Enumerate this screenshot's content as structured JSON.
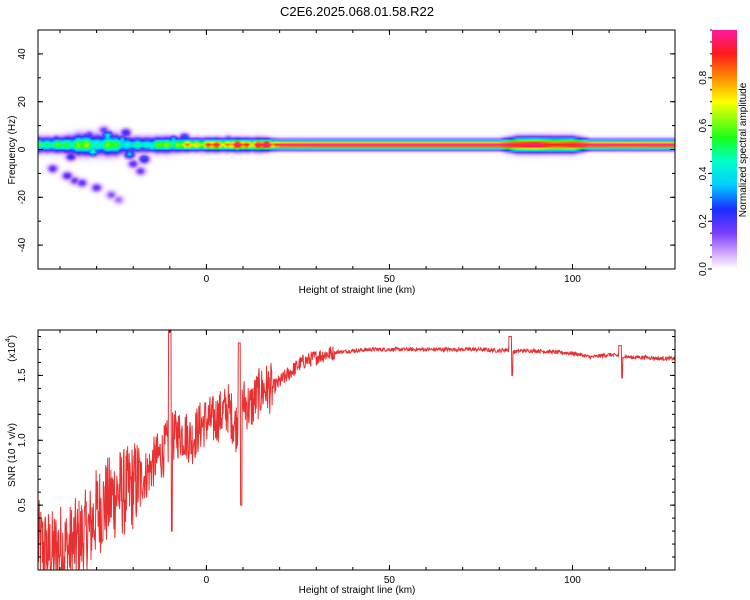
{
  "figure_title": "C2E6.2025.068.01.58.R22",
  "chart_data": [
    {
      "type": "heatmap",
      "title": "C2E6.2025.068.01.58.R22",
      "xlabel": "Height of straight line (km)",
      "ylabel": "Frequency (Hz)",
      "xlim": [
        -46,
        128
      ],
      "ylim": [
        -50,
        50
      ],
      "xticks": [
        0,
        50,
        100
      ],
      "yticks": [
        -40,
        -20,
        0,
        20,
        40
      ],
      "xtick_labels": [
        "0",
        "50",
        "100"
      ],
      "ytick_labels": [
        "-40",
        "-20",
        "0",
        "20",
        "40"
      ],
      "colorbar": {
        "label": "Normalized spectral amplitude",
        "range": [
          0,
          1
        ],
        "ticks": [
          0.0,
          0.2,
          0.4,
          0.6,
          0.8
        ],
        "tick_labels": [
          "0.0",
          "0.2",
          "0.4",
          "0.6",
          "0.8"
        ]
      },
      "band_center_hz": 2,
      "band": {
        "x": [
          -45,
          -40,
          -35,
          -30,
          -25,
          -20,
          -15,
          -10,
          -5,
          0,
          5,
          10,
          15,
          20,
          30,
          40,
          50,
          60,
          70,
          80,
          85,
          90,
          95,
          100,
          105,
          110,
          115,
          120,
          128
        ],
        "amplitude": [
          0.55,
          0.5,
          0.6,
          0.5,
          0.55,
          0.4,
          0.5,
          0.6,
          0.7,
          0.8,
          0.85,
          0.88,
          0.92,
          0.98,
          1.0,
          1.0,
          1.0,
          1.0,
          1.0,
          1.0,
          0.95,
          1.0,
          0.9,
          0.95,
          1.0,
          1.0,
          0.98,
          1.0,
          1.0
        ],
        "halfwidth_hz": [
          3,
          3,
          4,
          4,
          4,
          3,
          3,
          3,
          2.5,
          2.5,
          2.5,
          2.5,
          2.5,
          2,
          2,
          2,
          2,
          2,
          2,
          2,
          3,
          3,
          3,
          3,
          2,
          2,
          2,
          2,
          2
        ]
      },
      "blobs": [
        {
          "x": -44,
          "y": 2,
          "a": 0.55
        },
        {
          "x": -41,
          "y": 4,
          "a": 0.3
        },
        {
          "x": -39,
          "y": 1,
          "a": 0.45
        },
        {
          "x": -37,
          "y": -3,
          "a": 0.25
        },
        {
          "x": -35,
          "y": 2,
          "a": 0.6
        },
        {
          "x": -33,
          "y": 5,
          "a": 0.3
        },
        {
          "x": -31,
          "y": -1,
          "a": 0.5
        },
        {
          "x": -29,
          "y": 3,
          "a": 0.35
        },
        {
          "x": -27,
          "y": 6,
          "a": 0.45
        },
        {
          "x": -25,
          "y": 1,
          "a": 0.55
        },
        {
          "x": -23,
          "y": 4,
          "a": 0.4
        },
        {
          "x": -21,
          "y": -2,
          "a": 0.4
        },
        {
          "x": -19,
          "y": 2,
          "a": 0.35
        },
        {
          "x": -17,
          "y": -4,
          "a": 0.3
        },
        {
          "x": -15,
          "y": 1,
          "a": 0.45
        },
        {
          "x": -13,
          "y": 3,
          "a": 0.35
        },
        {
          "x": -11,
          "y": 2,
          "a": 0.5
        },
        {
          "x": -9,
          "y": 4,
          "a": 0.4
        },
        {
          "x": -42,
          "y": -8,
          "a": 0.2
        },
        {
          "x": -38,
          "y": -11,
          "a": 0.22
        },
        {
          "x": -34,
          "y": -14,
          "a": 0.2
        },
        {
          "x": -30,
          "y": -16,
          "a": 0.2
        },
        {
          "x": -26,
          "y": -19,
          "a": 0.15
        },
        {
          "x": -24,
          "y": -21,
          "a": 0.12
        },
        {
          "x": -36,
          "y": -13,
          "a": 0.18
        },
        {
          "x": -20,
          "y": -6,
          "a": 0.2
        },
        {
          "x": -18,
          "y": -9,
          "a": 0.18
        },
        {
          "x": -22,
          "y": 7,
          "a": 0.25
        },
        {
          "x": -28,
          "y": 8,
          "a": 0.18
        },
        {
          "x": -32,
          "y": 6,
          "a": 0.2
        },
        {
          "x": -6,
          "y": 5,
          "a": 0.3
        },
        {
          "x": -3,
          "y": 3,
          "a": 0.25
        },
        {
          "x": 6,
          "y": 4,
          "a": 0.25
        },
        {
          "x": 12,
          "y": 3,
          "a": 0.2
        }
      ],
      "pixel_grid": {
        "nx": 348,
        "ny": 120
      }
    },
    {
      "type": "line",
      "xlabel": "Height of straight line (km)",
      "ylabel": "SNR (10 * v/v)",
      "y_multiplier_label": "(x10",
      "y_multiplier_exponent": "4",
      "y_multiplier_close": ")",
      "xlim": [
        -46,
        128
      ],
      "ylim": [
        0,
        1.85
      ],
      "xticks": [
        0,
        50,
        100
      ],
      "yticks": [
        0.5,
        1.0,
        1.5
      ],
      "xtick_labels": [
        "0",
        "50",
        "100"
      ],
      "ytick_labels": [
        "0.5",
        "1.0",
        "1.5"
      ],
      "color": "#e83030",
      "series": [
        {
          "name": "SNR",
          "x": [
            -46,
            -44,
            -42,
            -40,
            -38,
            -36,
            -34,
            -32,
            -30,
            -28,
            -26,
            -24,
            -22,
            -20,
            -18,
            -16,
            -14,
            -12,
            -10,
            -8,
            -6,
            -4,
            -2,
            0,
            2,
            4,
            6,
            8,
            10,
            12,
            14,
            16,
            18,
            20,
            22,
            24,
            26,
            28,
            30,
            32,
            34,
            36,
            40,
            45,
            50,
            55,
            60,
            65,
            70,
            75,
            80,
            82,
            84,
            86,
            90,
            95,
            100,
            102,
            105,
            110,
            113,
            116,
            120,
            124,
            128
          ],
          "y": [
            0.2,
            0.15,
            0.12,
            0.18,
            0.15,
            0.2,
            0.25,
            0.3,
            0.45,
            0.5,
            0.55,
            0.6,
            0.6,
            0.65,
            0.7,
            0.75,
            0.85,
            0.9,
            1.0,
            1.05,
            1.05,
            1.0,
            1.1,
            1.15,
            1.15,
            1.2,
            1.25,
            1.1,
            1.3,
            1.25,
            1.35,
            1.4,
            1.4,
            1.45,
            1.5,
            1.55,
            1.6,
            1.62,
            1.64,
            1.66,
            1.67,
            1.68,
            1.69,
            1.7,
            1.7,
            1.7,
            1.7,
            1.7,
            1.7,
            1.7,
            1.69,
            1.7,
            1.68,
            1.69,
            1.69,
            1.68,
            1.67,
            1.66,
            1.64,
            1.66,
            1.65,
            1.64,
            1.64,
            1.63,
            1.63
          ]
        }
      ],
      "annotations": [
        {
          "x": 83,
          "y_peak": 1.8,
          "y_dip": 1.5
        },
        {
          "x": 113,
          "y_peak": 1.73,
          "y_dip": 1.48
        },
        {
          "x": -10,
          "y_peak": 1.85,
          "y_dip": 0.3
        },
        {
          "x": 9,
          "y_peak": 1.75,
          "y_dip": 0.5
        }
      ],
      "noise": [
        {
          "x_start": -46,
          "x_end": -18,
          "amplitude": 0.35
        },
        {
          "x_start": -18,
          "x_end": 18,
          "amplitude": 0.2
        },
        {
          "x_start": 18,
          "x_end": 35,
          "amplitude": 0.06
        },
        {
          "x_start": 35,
          "x_end": 128,
          "amplitude": 0.015
        }
      ]
    }
  ]
}
